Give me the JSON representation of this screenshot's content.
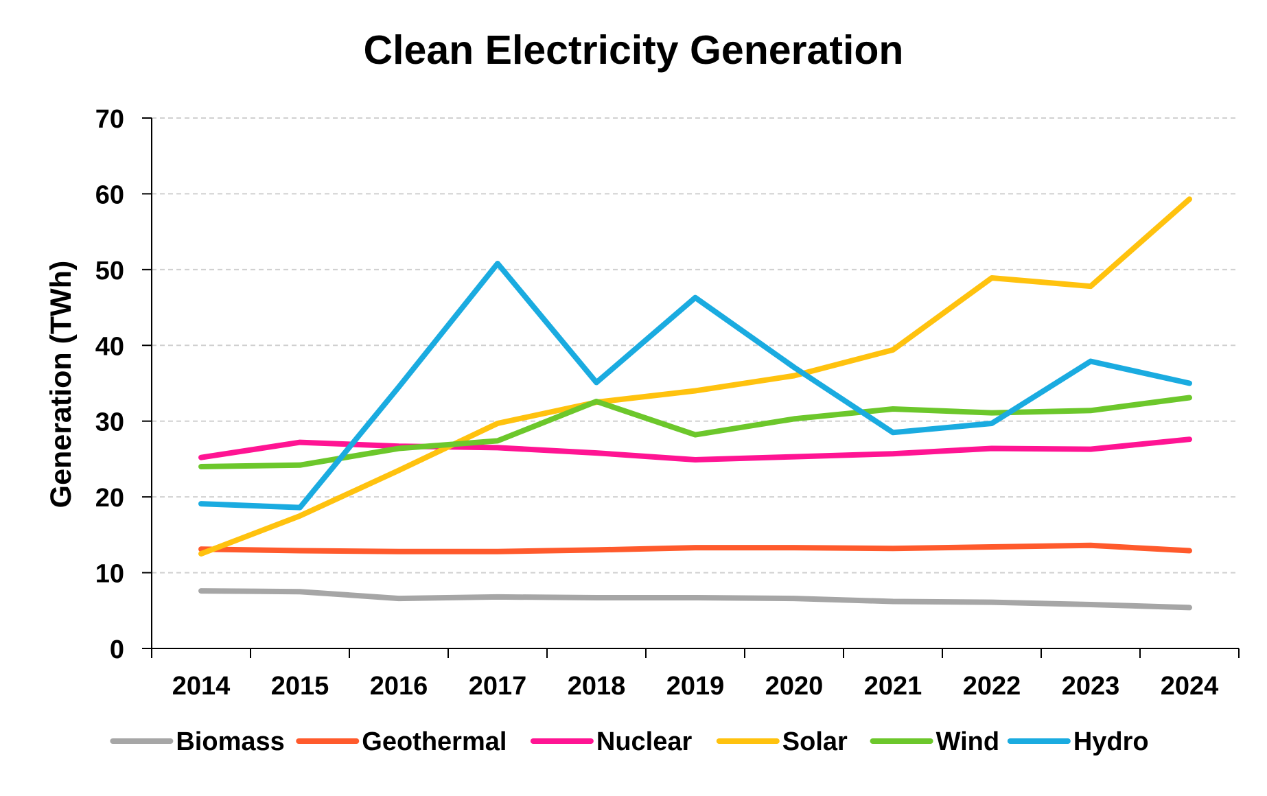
{
  "chart_data": {
    "type": "line",
    "title": "Clean Electricity Generation",
    "xlabel": "",
    "ylabel": "Generation (TWh)",
    "categories": [
      "2014",
      "2015",
      "2016",
      "2017",
      "2018",
      "2019",
      "2020",
      "2021",
      "2022",
      "2023",
      "2024"
    ],
    "ylim": [
      0,
      70
    ],
    "yticks": [
      0,
      10,
      20,
      30,
      40,
      50,
      60,
      70
    ],
    "grid": "horizontal dashed",
    "legend_position": "bottom",
    "series": [
      {
        "name": "Biomass",
        "color": "#A6A6A6",
        "values": [
          7.6,
          7.5,
          6.6,
          6.8,
          6.7,
          6.7,
          6.6,
          6.2,
          6.1,
          5.8,
          5.4
        ]
      },
      {
        "name": "Geothermal",
        "color": "#FF5A2C",
        "values": [
          13.1,
          12.9,
          12.8,
          12.8,
          13.0,
          13.3,
          13.3,
          13.2,
          13.4,
          13.6,
          12.9
        ]
      },
      {
        "name": "Nuclear",
        "color": "#FF1493",
        "values": [
          25.2,
          27.2,
          26.7,
          26.5,
          25.8,
          24.9,
          25.3,
          25.7,
          26.4,
          26.3,
          27.6
        ]
      },
      {
        "name": "Solar",
        "color": "#FFC20E",
        "values": [
          12.5,
          17.5,
          23.5,
          29.7,
          32.5,
          34.0,
          36.0,
          39.4,
          48.9,
          47.8,
          59.3
        ]
      },
      {
        "name": "Wind",
        "color": "#6CC72B",
        "values": [
          24.0,
          24.2,
          26.4,
          27.4,
          32.6,
          28.2,
          30.3,
          31.6,
          31.1,
          31.4,
          33.1
        ]
      },
      {
        "name": "Hydro",
        "color": "#1AABE0",
        "values": [
          19.1,
          18.6,
          34.5,
          50.8,
          35.1,
          46.3,
          37.1,
          28.5,
          29.7,
          37.9,
          35.0
        ]
      }
    ]
  }
}
